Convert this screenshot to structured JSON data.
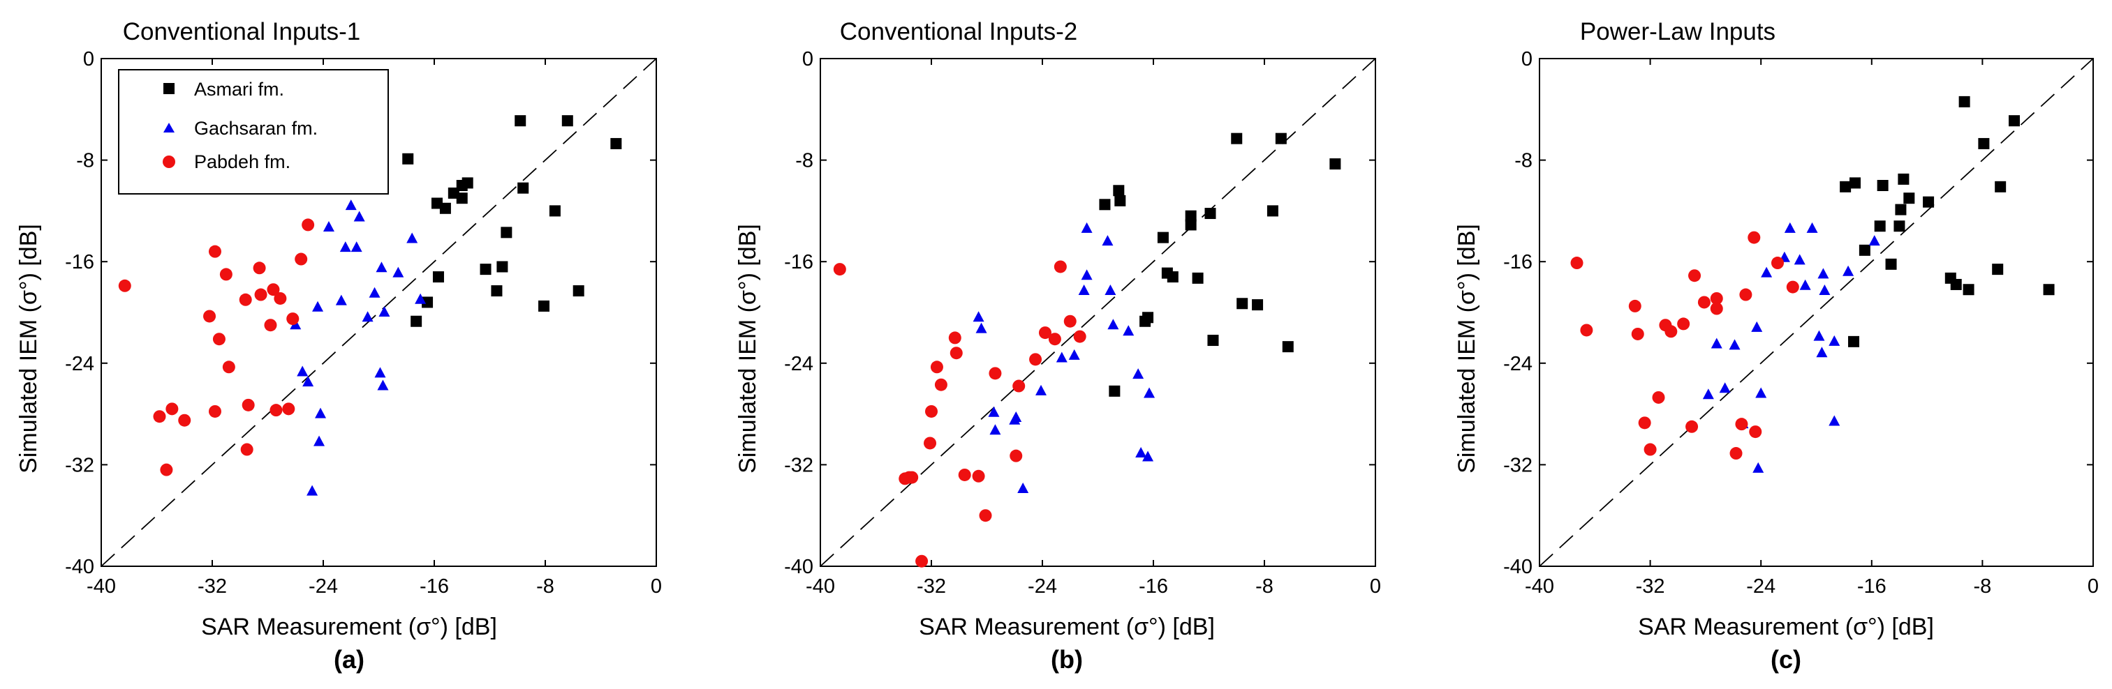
{
  "colors": {
    "asmari": "#000000",
    "gachsaran": "#0000ee",
    "pabdeh": "#ee1111",
    "one_to_one": "#000000"
  },
  "chart_data": [
    {
      "type": "scatter",
      "title": "Conventional Inputs-1",
      "subcaption": "(a)",
      "xlabel": "SAR Measurement (σ°) [dB]",
      "ylabel": "Simulated IEM (σ°) [dB]",
      "xlim": [
        -40,
        0
      ],
      "ylim": [
        -40,
        0
      ],
      "xticks": [
        -40,
        -32,
        -24,
        -16,
        -8,
        0
      ],
      "yticks": [
        0,
        -8,
        -16,
        -24,
        -32,
        -40
      ],
      "legend": "top-left",
      "reference_line": "1:1 dashed",
      "series": [
        {
          "name": "Asmari fm.",
          "marker": "square",
          "x": [
            -17.3,
            -17.9,
            -13.6,
            -10.8,
            -15.8,
            -15.2,
            -14.6,
            -11.1,
            -14.0,
            -14.0,
            -12.3,
            -15.7,
            -16.5,
            -9.8,
            -9.6,
            -6.4,
            -7.3,
            -2.9,
            -5.6,
            -11.5,
            -8.1
          ],
          "y": [
            -20.7,
            -7.9,
            -9.8,
            -13.7,
            -11.4,
            -11.8,
            -10.6,
            -16.4,
            -10.0,
            -11.0,
            -16.6,
            -17.2,
            -19.2,
            -4.9,
            -10.2,
            -4.9,
            -12.0,
            -6.7,
            -18.3,
            -18.3,
            -19.5
          ]
        },
        {
          "name": "Gachsaran fm.",
          "marker": "triangle",
          "x": [
            -24.2,
            -25.1,
            -25.5,
            -26.0,
            -24.4,
            -22.7,
            -22.4,
            -23.6,
            -24.3,
            -24.8,
            -21.4,
            -21.6,
            -22.0,
            -20.8,
            -19.6,
            -19.7,
            -19.9,
            -17.6,
            -19.8,
            -20.3,
            -17.0,
            -18.6
          ],
          "y": [
            -28.0,
            -25.5,
            -24.7,
            -21.0,
            -19.6,
            -19.1,
            -14.9,
            -13.3,
            -30.2,
            -34.1,
            -12.5,
            -14.9,
            -11.6,
            -20.4,
            -20.0,
            -25.8,
            -24.8,
            -14.2,
            -16.5,
            -18.5,
            -19.0,
            -16.9
          ]
        },
        {
          "name": "Pabdeh fm.",
          "marker": "circle",
          "x": [
            -38.3,
            -35.8,
            -34.0,
            -34.9,
            -35.3,
            -31.8,
            -32.2,
            -31.5,
            -30.8,
            -29.6,
            -29.4,
            -28.5,
            -27.6,
            -27.1,
            -26.2,
            -25.6,
            -31.8,
            -31.0,
            -29.5,
            -28.6,
            -27.4,
            -27.8,
            -26.5,
            -25.1
          ],
          "y": [
            -17.9,
            -28.2,
            -28.5,
            -27.6,
            -32.4,
            -15.2,
            -20.3,
            -22.1,
            -24.3,
            -19.0,
            -27.3,
            -18.6,
            -18.2,
            -18.9,
            -20.5,
            -15.8,
            -27.8,
            -17.0,
            -30.8,
            -16.5,
            -27.7,
            -21.0,
            -27.6,
            -13.1
          ]
        }
      ]
    },
    {
      "type": "scatter",
      "title": "Conventional Inputs-2",
      "subcaption": "(b)",
      "xlabel": "SAR Measurement (σ°) [dB]",
      "ylabel": "Simulated IEM (σ°) [dB]",
      "xlim": [
        -40,
        0
      ],
      "ylim": [
        -40,
        0
      ],
      "xticks": [
        -40,
        -32,
        -24,
        -16,
        -8,
        0
      ],
      "yticks": [
        0,
        -8,
        -16,
        -24,
        -32,
        -40
      ],
      "legend": "none",
      "reference_line": "1:1 dashed",
      "series": [
        {
          "name": "Asmari fm.",
          "marker": "square",
          "x": [
            -18.8,
            -18.5,
            -19.5,
            -18.4,
            -16.4,
            -15.3,
            -14.6,
            -13.3,
            -13.3,
            -11.9,
            -12.8,
            -11.7,
            -10.0,
            -9.6,
            -6.8,
            -7.4,
            -8.5,
            -6.3,
            -2.9,
            -15.0,
            -16.6
          ],
          "y": [
            -26.2,
            -10.4,
            -11.5,
            -11.2,
            -20.4,
            -14.1,
            -17.2,
            -12.4,
            -13.1,
            -12.2,
            -17.3,
            -22.2,
            -6.3,
            -19.3,
            -6.3,
            -12.0,
            -19.4,
            -22.7,
            -8.3,
            -16.9,
            -20.7
          ]
        },
        {
          "name": "Gachsaran fm.",
          "marker": "triangle",
          "x": [
            -25.4,
            -24.1,
            -22.6,
            -21.7,
            -21.0,
            -20.8,
            -20.8,
            -19.3,
            -19.1,
            -18.9,
            -17.8,
            -17.1,
            -16.9,
            -16.4,
            -16.3,
            -25.9,
            -26.0,
            -27.4,
            -27.5,
            -28.4,
            -28.6
          ],
          "y": [
            -33.9,
            -26.2,
            -23.6,
            -23.4,
            -18.3,
            -17.1,
            -13.4,
            -14.4,
            -18.3,
            -21.0,
            -21.5,
            -24.9,
            -31.1,
            -31.4,
            -26.4,
            -28.3,
            -28.5,
            -29.3,
            -27.9,
            -21.3,
            -20.4
          ]
        },
        {
          "name": "Pabdeh fm.",
          "marker": "circle",
          "x": [
            -38.6,
            -33.6,
            -33.9,
            -33.4,
            -32.7,
            -32.1,
            -32.0,
            -31.3,
            -31.6,
            -30.3,
            -30.2,
            -29.6,
            -28.6,
            -28.1,
            -27.4,
            -25.9,
            -25.7,
            -24.5,
            -23.1,
            -23.8,
            -22.7,
            -22.0,
            -21.3
          ],
          "y": [
            -16.6,
            -33.0,
            -33.1,
            -33.0,
            -39.6,
            -30.3,
            -27.8,
            -25.7,
            -24.3,
            -22.0,
            -23.2,
            -32.8,
            -32.9,
            -36.0,
            -24.8,
            -31.3,
            -25.8,
            -23.7,
            -22.1,
            -21.6,
            -16.4,
            -20.7,
            -21.9
          ]
        }
      ]
    },
    {
      "type": "scatter",
      "title": "Power-Law Inputs",
      "subcaption": "(c)",
      "xlabel": "SAR Measurement (σ°) [dB]",
      "ylabel": "Simulated IEM (σ°) [dB]",
      "xlim": [
        -40,
        0
      ],
      "ylim": [
        -40,
        0
      ],
      "xticks": [
        -40,
        -32,
        -24,
        -16,
        -8,
        0
      ],
      "yticks": [
        0,
        -8,
        -16,
        -24,
        -32,
        -40
      ],
      "legend": "none",
      "reference_line": "1:1 dashed",
      "series": [
        {
          "name": "Asmari fm.",
          "marker": "square",
          "x": [
            -17.3,
            -17.9,
            -16.5,
            -17.2,
            -15.4,
            -15.2,
            -14.6,
            -14.0,
            -13.7,
            -13.3,
            -11.9,
            -13.9,
            -9.3,
            -7.9,
            -9.9,
            -10.3,
            -9.0,
            -6.7,
            -6.9,
            -5.7,
            -3.2
          ],
          "y": [
            -22.3,
            -10.1,
            -15.1,
            -9.8,
            -13.2,
            -10.0,
            -16.2,
            -13.2,
            -9.5,
            -11.0,
            -11.3,
            -11.9,
            -3.4,
            -6.7,
            -17.8,
            -17.3,
            -18.2,
            -10.1,
            -16.6,
            -4.9,
            -18.2
          ]
        },
        {
          "name": "Gachsaran fm.",
          "marker": "triangle",
          "x": [
            -24.2,
            -25.9,
            -26.6,
            -27.2,
            -27.8,
            -25.3,
            -24.3,
            -24.0,
            -23.6,
            -22.3,
            -21.9,
            -21.2,
            -20.3,
            -20.8,
            -19.8,
            -19.5,
            -19.6,
            -18.7,
            -19.4,
            -18.7,
            -17.7,
            -15.8
          ],
          "y": [
            -32.3,
            -22.6,
            -26.0,
            -22.5,
            -26.5,
            -28.8,
            -21.2,
            -26.4,
            -16.9,
            -15.7,
            -13.4,
            -15.9,
            -13.4,
            -17.9,
            -21.9,
            -17.0,
            -23.2,
            -28.6,
            -18.3,
            -22.3,
            -16.8,
            -14.4
          ]
        },
        {
          "name": "Pabdeh fm.",
          "marker": "circle",
          "x": [
            -37.3,
            -36.6,
            -33.1,
            -32.9,
            -32.4,
            -31.4,
            -32.0,
            -30.9,
            -30.5,
            -29.6,
            -29.0,
            -28.8,
            -28.1,
            -27.2,
            -27.2,
            -25.4,
            -25.8,
            -25.1,
            -24.4,
            -24.5,
            -22.8,
            -21.7
          ],
          "y": [
            -16.1,
            -21.4,
            -19.5,
            -21.7,
            -28.7,
            -26.7,
            -30.8,
            -21.0,
            -21.5,
            -20.9,
            -29.0,
            -17.1,
            -19.2,
            -18.9,
            -19.7,
            -28.8,
            -31.1,
            -18.6,
            -29.4,
            -14.1,
            -16.1,
            -18.0
          ]
        }
      ]
    }
  ]
}
